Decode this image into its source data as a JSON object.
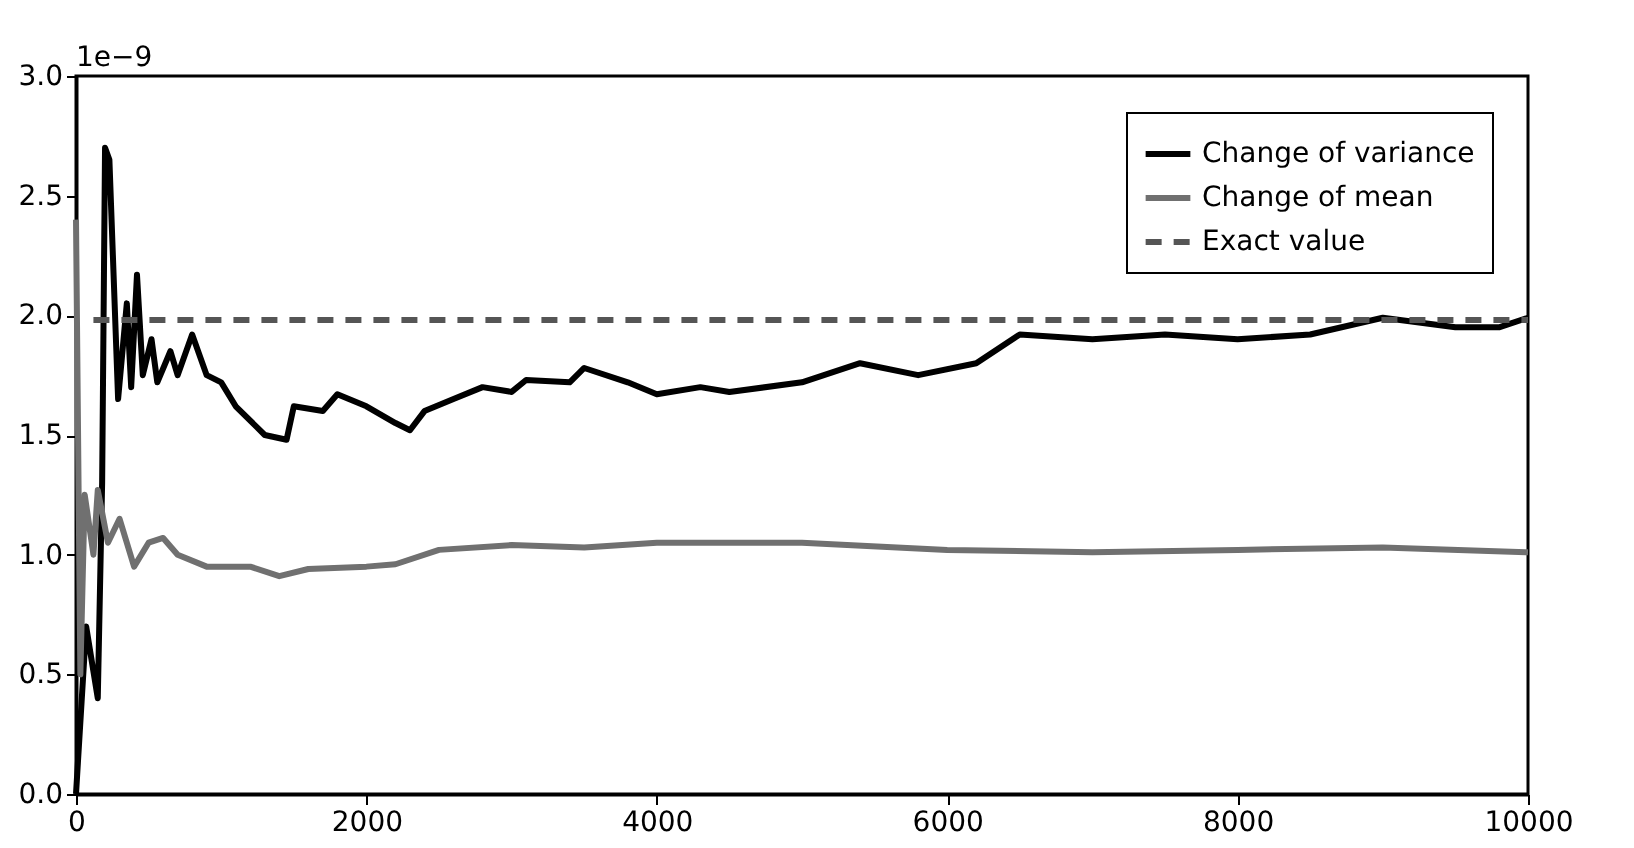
{
  "chart_data": {
    "type": "line",
    "xlim": [
      0,
      10000
    ],
    "xticks": [
      0,
      2000,
      4000,
      6000,
      8000,
      10000
    ],
    "ylim": [
      0,
      3
    ],
    "yticks": [
      {
        "value": 0,
        "label": "0.0"
      },
      {
        "value": 0.5,
        "label": "0.5"
      },
      {
        "value": 1,
        "label": "1.0"
      },
      {
        "value": 1.5,
        "label": "1.5"
      },
      {
        "value": 2,
        "label": "2.0"
      },
      {
        "value": 2.5,
        "label": "2.5"
      },
      {
        "value": 3,
        "label": "3.0"
      }
    ],
    "annotations": [
      "1e−9"
    ],
    "grid": false,
    "legend": "top right",
    "series": [
      {
        "name": "Change of variance",
        "color": "#000000",
        "line_style": "solid",
        "x": [
          0,
          70,
          150,
          180,
          200,
          230,
          290,
          350,
          380,
          420,
          460,
          520,
          560,
          650,
          700,
          800,
          900,
          1000,
          1100,
          1300,
          1450,
          1500,
          1700,
          1800,
          2000,
          2200,
          2300,
          2400,
          2600,
          2800,
          3000,
          3100,
          3400,
          3500,
          3800,
          4000,
          4300,
          4500,
          5000,
          5400,
          5800,
          6200,
          6500,
          7000,
          7500,
          8000,
          8500,
          9000,
          9500,
          9800,
          10000
        ],
        "values": [
          0.0,
          0.7,
          0.4,
          1.3,
          2.7,
          2.65,
          1.65,
          2.05,
          1.7,
          2.17,
          1.75,
          1.9,
          1.72,
          1.85,
          1.75,
          1.92,
          1.75,
          1.72,
          1.62,
          1.5,
          1.48,
          1.62,
          1.6,
          1.67,
          1.62,
          1.55,
          1.52,
          1.6,
          1.65,
          1.7,
          1.68,
          1.73,
          1.72,
          1.78,
          1.72,
          1.67,
          1.7,
          1.68,
          1.72,
          1.8,
          1.75,
          1.8,
          1.92,
          1.9,
          1.92,
          1.9,
          1.92,
          1.99,
          1.95,
          1.95,
          1.99
        ]
      },
      {
        "name": "Change of mean",
        "color": "#707070",
        "line_style": "solid",
        "x": [
          0,
          30,
          60,
          120,
          150,
          220,
          300,
          400,
          500,
          600,
          700,
          900,
          1200,
          1400,
          1600,
          2000,
          2200,
          2500,
          3000,
          3500,
          4000,
          5000,
          6000,
          7000,
          8000,
          9000,
          10000
        ],
        "values": [
          2.4,
          0.5,
          1.25,
          1.0,
          1.27,
          1.05,
          1.15,
          0.95,
          1.05,
          1.07,
          1.0,
          0.95,
          0.95,
          0.91,
          0.94,
          0.95,
          0.96,
          1.02,
          1.04,
          1.03,
          1.05,
          1.05,
          1.02,
          1.01,
          1.02,
          1.03,
          1.01
        ]
      },
      {
        "name": "Exact value",
        "color": "#555555",
        "line_style": "dashed",
        "x": [
          120,
          10000
        ],
        "values": [
          1.98,
          1.98
        ]
      }
    ]
  }
}
